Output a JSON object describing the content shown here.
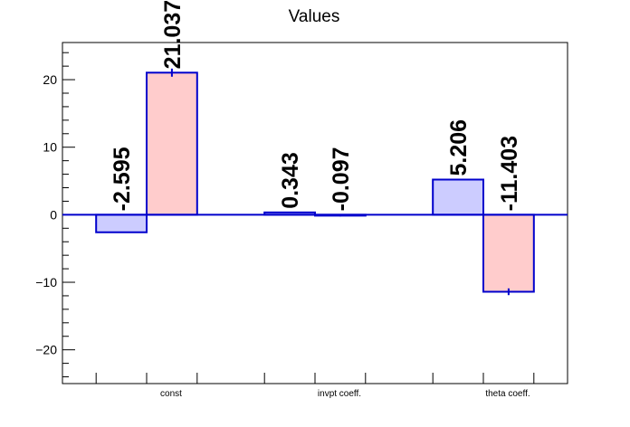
{
  "chart_data": {
    "type": "bar",
    "title": "Values",
    "xlabel": "",
    "ylabel": "",
    "categories": [
      "const",
      "invpt coeff.",
      "theta coeff."
    ],
    "ylim": [
      -25,
      25.5
    ],
    "yticks": [
      -20,
      -10,
      0,
      10,
      20
    ],
    "ytick_labels": [
      "−20",
      "−10",
      "0",
      "10",
      "20"
    ],
    "grid": false,
    "legend": "none",
    "series": [
      {
        "values": [
          -2.595,
          0.343,
          5.206
        ],
        "labels": [
          "-2.595",
          "0.343",
          "5.206"
        ],
        "errors": [
          0,
          0,
          0
        ],
        "fill": "#ccccff",
        "stroke": "#0000cc"
      },
      {
        "values": [
          21.037,
          -0.097,
          -11.403
        ],
        "labels": [
          "21.037",
          "-0.097",
          "-11.403"
        ],
        "errors": [
          0.6,
          0.15,
          0.5
        ],
        "fill": "#ffcccc",
        "stroke": "#0000cc"
      }
    ],
    "zero_line_color": "#0000cc"
  }
}
